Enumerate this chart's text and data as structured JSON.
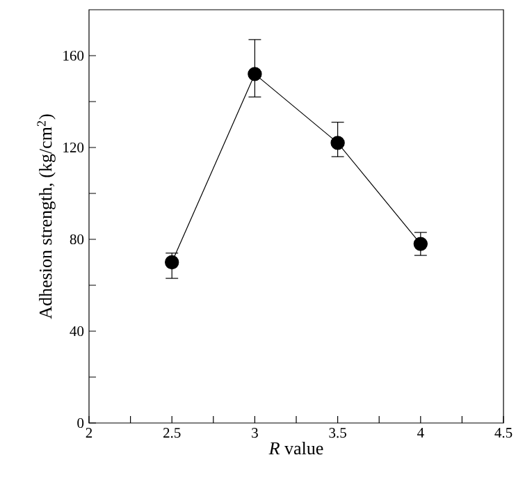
{
  "chart_data": {
    "type": "line",
    "xlabel": "*R* value",
    "ylabel": "Adhesion strength, (kg/cm$^{2}$)",
    "x": [
      2.5,
      3,
      3.5,
      4
    ],
    "series": [
      {
        "color": "#000000",
        "values": [
          70,
          152,
          122,
          78
        ],
        "errors": [
          [
            63,
            74
          ],
          [
            142,
            167
          ],
          [
            116,
            131
          ],
          [
            73,
            83
          ]
        ]
      }
    ],
    "xlim": [
      2,
      4.5
    ],
    "xticks": [
      2,
      {
        "value": 2.25,
        "label": null
      },
      2.5,
      {
        "value": 2.75,
        "label": null
      },
      3,
      {
        "value": 3.25,
        "label": null
      },
      3.5,
      {
        "value": 3.75,
        "label": null
      },
      4,
      {
        "value": 4.25,
        "label": null
      },
      4.5
    ],
    "ylim": [
      0,
      180
    ],
    "yticks": [
      0,
      {
        "value": 20,
        "label": null
      },
      40,
      {
        "value": 60,
        "label": null
      },
      80,
      {
        "value": 100,
        "label": null
      },
      120,
      {
        "value": 140,
        "label": null
      },
      160
    ],
    "marker": "circle",
    "line_style": "solid",
    "grid": false
  }
}
